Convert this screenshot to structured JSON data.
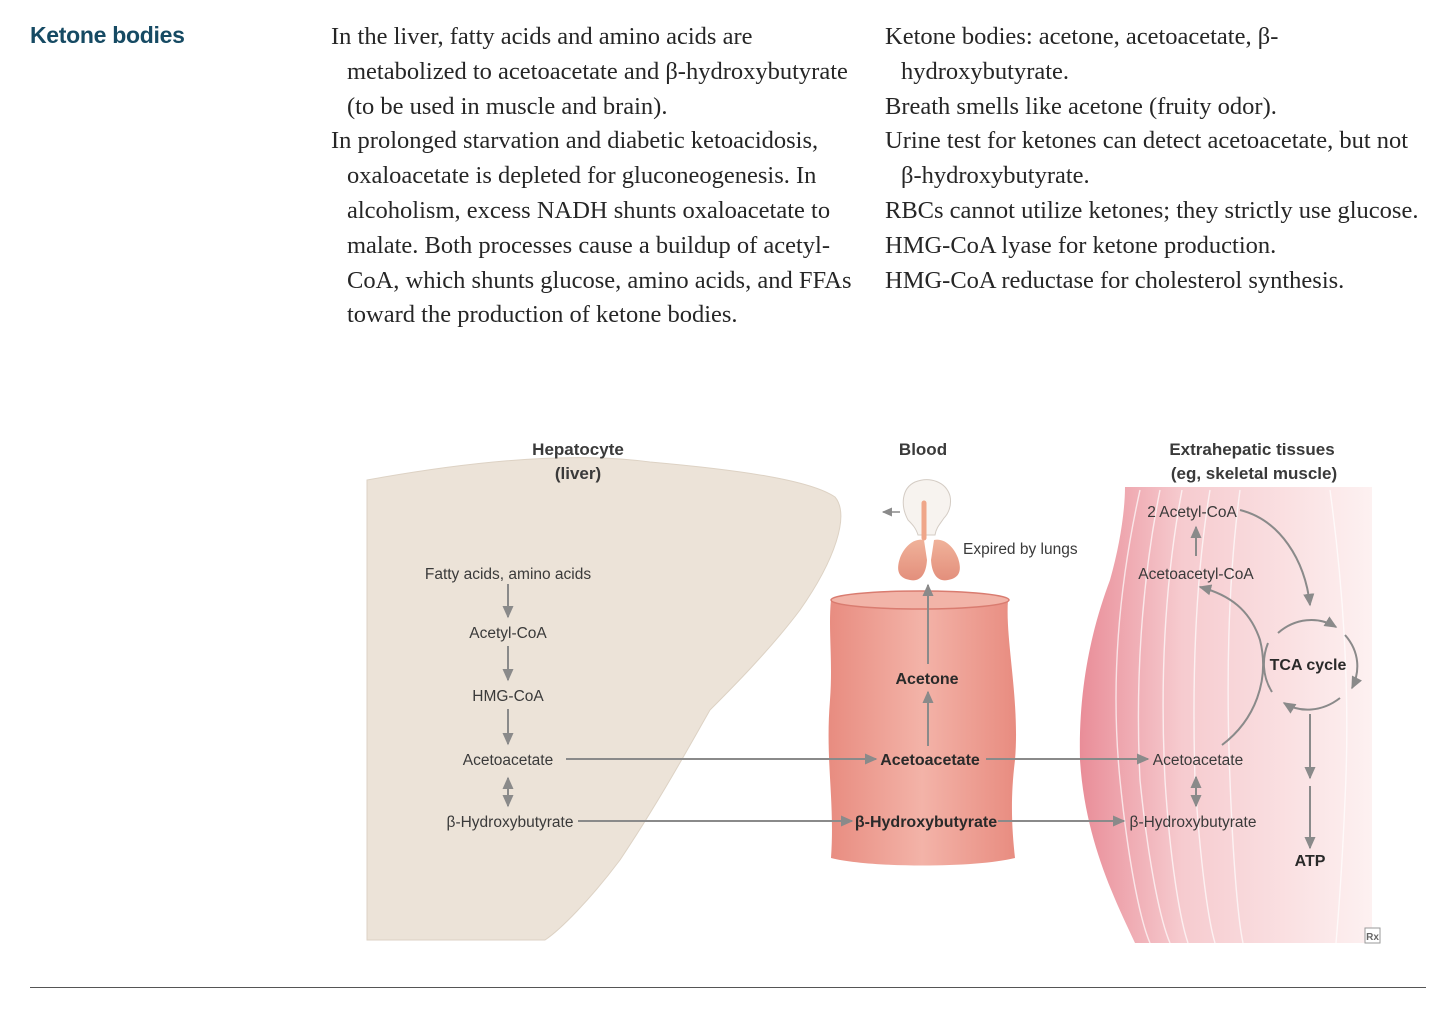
{
  "section_title": "Ketone bodies",
  "left_column": [
    "In the liver, fatty acids and amino acids are metabolized to acetoacetate and β-hydroxybutyrate (to be used in muscle and brain).",
    "In prolonged starvation and diabetic ketoacidosis, oxaloacetate is depleted for gluconeogenesis. In alcoholism, excess NADH shunts oxaloacetate to malate. Both processes cause a buildup of acetyl-CoA, which shunts glucose, amino acids, and FFAs toward the production of ketone bodies."
  ],
  "right_column": [
    "Ketone bodies: acetone, acetoacetate, β-hydroxybutyrate.",
    "Breath smells like acetone (fruity odor).",
    "Urine test for ketones can detect acetoacetate, but not β-hydroxybutyrate.",
    "RBCs cannot utilize ketones; they strictly use glucose.",
    "HMG-CoA lyase for ketone production.",
    "HMG-CoA reductase for cholesterol synthesis."
  ],
  "diagram": {
    "hepatocyte": {
      "title_line1": "Hepatocyte",
      "title_line2": "(liver)",
      "steps": [
        "Fatty acids, amino acids",
        "Acetyl-CoA",
        "HMG-CoA",
        "Acetoacetate",
        "β-Hydroxybutyrate"
      ]
    },
    "blood": {
      "title": "Blood",
      "acetone": "Acetone",
      "acetoacetate": "Acetoacetate",
      "hydroxybutyrate": "β-Hydroxybutyrate",
      "expired": "Expired by lungs"
    },
    "extrahepatic": {
      "title_line1": "Extrahepatic tissues",
      "title_line2": "(eg, skeletal muscle)",
      "acetyl_coa": "2 Acetyl-CoA",
      "acetoacetyl_coa": "Acetoacetyl-CoA",
      "tca": "TCA cycle",
      "acetoacetate": "Acetoacetate",
      "hydroxybutyrate": "β-Hydroxybutyrate",
      "atp": "ATP"
    },
    "logo": "Rx",
    "colors": {
      "liver": "#ece3d8",
      "blood": "#ec9f93",
      "muscle": "#f3c2c6",
      "arrow": "#8a8a8a",
      "heading": "#164a63"
    }
  }
}
